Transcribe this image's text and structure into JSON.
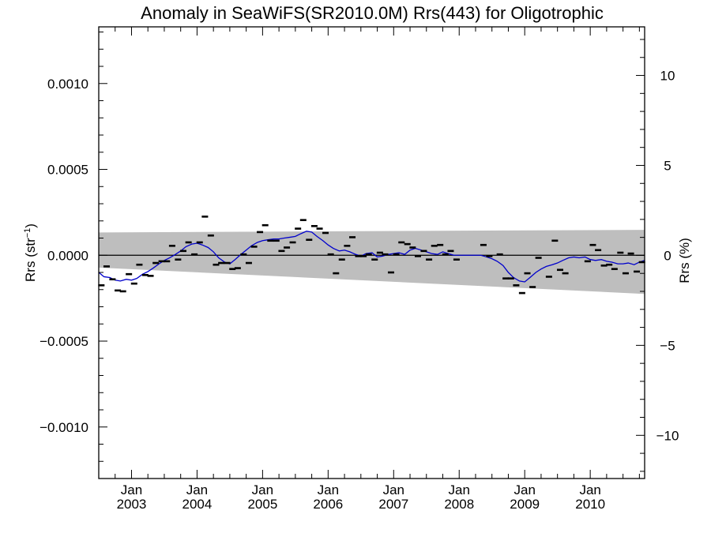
{
  "chart_data": {
    "type": "scatter",
    "title": "Anomaly in SeaWiFS(SR2010.0M) Rrs(443) for Oligotrophic",
    "ylabel_left_main": "Rrs (str",
    "ylabel_left_sup": "−1",
    "ylabel_left_close": ")",
    "ylabel_right": "Rrs (%)",
    "xlim": [
      2002.5,
      2010.83
    ],
    "ylim": [
      -0.0013,
      0.00133
    ],
    "y2lim": [
      -12.4,
      12.7
    ],
    "x_ticks": [
      {
        "value": 2003.0,
        "month": "Jan",
        "year": "2003"
      },
      {
        "value": 2004.0,
        "month": "Jan",
        "year": "2004"
      },
      {
        "value": 2005.0,
        "month": "Jan",
        "year": "2005"
      },
      {
        "value": 2006.0,
        "month": "Jan",
        "year": "2006"
      },
      {
        "value": 2007.0,
        "month": "Jan",
        "year": "2007"
      },
      {
        "value": 2008.0,
        "month": "Jan",
        "year": "2008"
      },
      {
        "value": 2009.0,
        "month": "Jan",
        "year": "2009"
      },
      {
        "value": 2010.0,
        "month": "Jan",
        "year": "2010"
      }
    ],
    "y_ticks_left": [
      {
        "value": 0.001,
        "label": "0.0010"
      },
      {
        "value": 0.0005,
        "label": "0.0005"
      },
      {
        "value": 0.0,
        "label": "0.0000"
      },
      {
        "value": -0.0005,
        "label": "−0.0005"
      },
      {
        "value": -0.001,
        "label": "−0.0010"
      }
    ],
    "y_ticks_right": [
      {
        "value": 10,
        "label": "10"
      },
      {
        "value": 5,
        "label": "5"
      },
      {
        "value": 0,
        "label": "0"
      },
      {
        "value": -5,
        "label": "−5"
      },
      {
        "value": -10,
        "label": "−10"
      }
    ],
    "zero_line": 0.0,
    "uncertainty_band": {
      "x": [
        2002.5,
        2010.83
      ],
      "upper": [
        0.000133,
        0.000148
      ],
      "lower": [
        -7.2e-05,
        -0.000225
      ]
    },
    "monthly_points": [
      [
        2002.54,
        -0.000175
      ],
      [
        2002.62,
        -6.5e-05
      ],
      [
        2002.71,
        -0.00014
      ],
      [
        2002.79,
        -0.000205
      ],
      [
        2002.87,
        -0.00021
      ],
      [
        2002.96,
        -0.00011
      ],
      [
        2003.04,
        -0.000165
      ],
      [
        2003.12,
        -5.5e-05
      ],
      [
        2003.21,
        -0.000115
      ],
      [
        2003.29,
        -0.00012
      ],
      [
        2003.37,
        -4.5e-05
      ],
      [
        2003.46,
        -3.5e-05
      ],
      [
        2003.54,
        -3.5e-05
      ],
      [
        2003.62,
        5.5e-05
      ],
      [
        2003.71,
        -2.5e-05
      ],
      [
        2003.79,
        2.5e-05
      ],
      [
        2003.87,
        7.5e-05
      ],
      [
        2003.96,
        5e-06
      ],
      [
        2004.04,
        7.5e-05
      ],
      [
        2004.12,
        0.000225
      ],
      [
        2004.21,
        0.000115
      ],
      [
        2004.29,
        -5.5e-05
      ],
      [
        2004.37,
        -4.5e-05
      ],
      [
        2004.46,
        -4.5e-05
      ],
      [
        2004.54,
        -8e-05
      ],
      [
        2004.62,
        -7.5e-05
      ],
      [
        2004.71,
        5e-06
      ],
      [
        2004.79,
        -4.5e-05
      ],
      [
        2004.87,
        5e-05
      ],
      [
        2004.96,
        0.000135
      ],
      [
        2005.04,
        0.000175
      ],
      [
        2005.12,
        8.5e-05
      ],
      [
        2005.21,
        8.5e-05
      ],
      [
        2005.29,
        2.5e-05
      ],
      [
        2005.37,
        4.5e-05
      ],
      [
        2005.46,
        7.5e-05
      ],
      [
        2005.54,
        0.000155
      ],
      [
        2005.62,
        0.000205
      ],
      [
        2005.71,
        9e-05
      ],
      [
        2005.79,
        0.00017
      ],
      [
        2005.87,
        0.000155
      ],
      [
        2005.96,
        0.00013
      ],
      [
        2006.04,
        5e-06
      ],
      [
        2006.12,
        -0.000105
      ],
      [
        2006.21,
        -2.5e-05
      ],
      [
        2006.29,
        5.5e-05
      ],
      [
        2006.37,
        0.000105
      ],
      [
        2006.46,
        -5e-06
      ],
      [
        2006.54,
        -5e-06
      ],
      [
        2006.62,
        5e-06
      ],
      [
        2006.71,
        -2.5e-05
      ],
      [
        2006.79,
        1.5e-05
      ],
      [
        2006.87,
        5e-06
      ],
      [
        2006.96,
        -0.0001
      ],
      [
        2007.04,
        5e-06
      ],
      [
        2007.12,
        7.5e-05
      ],
      [
        2007.21,
        6.5e-05
      ],
      [
        2007.29,
        4.5e-05
      ],
      [
        2007.37,
        -5e-06
      ],
      [
        2007.46,
        2.5e-05
      ],
      [
        2007.54,
        -2.5e-05
      ],
      [
        2007.62,
        5.5e-05
      ],
      [
        2007.71,
        6e-05
      ],
      [
        2007.79,
        5e-06
      ],
      [
        2007.87,
        2.5e-05
      ],
      [
        2007.96,
        -2.5e-05
      ],
      [
        2008.37,
        6e-05
      ],
      [
        2008.46,
        -5e-06
      ],
      [
        2008.62,
        5e-06
      ],
      [
        2008.71,
        -0.000135
      ],
      [
        2008.79,
        -0.000135
      ],
      [
        2008.87,
        -0.000175
      ],
      [
        2008.96,
        -0.00022
      ],
      [
        2009.04,
        -0.000105
      ],
      [
        2009.12,
        -0.000185
      ],
      [
        2009.21,
        -1.5e-05
      ],
      [
        2009.37,
        -0.000125
      ],
      [
        2009.46,
        8.5e-05
      ],
      [
        2009.54,
        -8.5e-05
      ],
      [
        2009.62,
        -0.000105
      ],
      [
        2009.96,
        -3.5e-05
      ],
      [
        2010.04,
        6e-05
      ],
      [
        2010.12,
        3e-05
      ],
      [
        2010.21,
        -6e-05
      ],
      [
        2010.29,
        -5.5e-05
      ],
      [
        2010.37,
        -8e-05
      ],
      [
        2010.46,
        1.5e-05
      ],
      [
        2010.54,
        -0.000105
      ],
      [
        2010.62,
        1e-05
      ],
      [
        2010.71,
        -9.5e-05
      ],
      [
        2010.79,
        -4e-05
      ]
    ],
    "running_mean": {
      "color": "#0000cc",
      "points": [
        [
          2002.5,
          -0.0001
        ],
        [
          2002.58,
          -0.000125
        ],
        [
          2002.67,
          -0.00013
        ],
        [
          2002.75,
          -0.000145
        ],
        [
          2002.83,
          -0.00015
        ],
        [
          2002.92,
          -0.00014
        ],
        [
          2003.0,
          -0.000145
        ],
        [
          2003.08,
          -0.000135
        ],
        [
          2003.17,
          -0.00011
        ],
        [
          2003.25,
          -9.5e-05
        ],
        [
          2003.33,
          -7.5e-05
        ],
        [
          2003.42,
          -5e-05
        ],
        [
          2003.5,
          -3e-05
        ],
        [
          2003.58,
          -1.5e-05
        ],
        [
          2003.67,
          5e-06
        ],
        [
          2003.75,
          2.5e-05
        ],
        [
          2003.83,
          5e-05
        ],
        [
          2003.92,
          6.5e-05
        ],
        [
          2004.0,
          7e-05
        ],
        [
          2004.08,
          6e-05
        ],
        [
          2004.17,
          4.5e-05
        ],
        [
          2004.25,
          2e-05
        ],
        [
          2004.33,
          -1.5e-05
        ],
        [
          2004.42,
          -4e-05
        ],
        [
          2004.5,
          -5e-05
        ],
        [
          2004.58,
          -2.5e-05
        ],
        [
          2004.67,
          5e-06
        ],
        [
          2004.75,
          3e-05
        ],
        [
          2004.83,
          5.5e-05
        ],
        [
          2004.92,
          7.5e-05
        ],
        [
          2005.0,
          8.5e-05
        ],
        [
          2005.08,
          9e-05
        ],
        [
          2005.17,
          9.5e-05
        ],
        [
          2005.25,
          9.5e-05
        ],
        [
          2005.33,
          0.0001
        ],
        [
          2005.42,
          0.000105
        ],
        [
          2005.5,
          0.00011
        ],
        [
          2005.58,
          0.000125
        ],
        [
          2005.67,
          0.00014
        ],
        [
          2005.75,
          0.000135
        ],
        [
          2005.83,
          0.00011
        ],
        [
          2005.92,
          8.5e-05
        ],
        [
          2006.0,
          6e-05
        ],
        [
          2006.08,
          4e-05
        ],
        [
          2006.17,
          2.5e-05
        ],
        [
          2006.25,
          3e-05
        ],
        [
          2006.33,
          2e-05
        ],
        [
          2006.42,
          5e-06
        ],
        [
          2006.5,
          -5e-06
        ],
        [
          2006.58,
          1e-05
        ],
        [
          2006.67,
          1.5e-05
        ],
        [
          2006.75,
          -1e-05
        ],
        [
          2006.83,
          -5e-06
        ],
        [
          2006.92,
          5e-06
        ],
        [
          2007.0,
          1e-05
        ],
        [
          2007.08,
          1.5e-05
        ],
        [
          2007.17,
          5e-06
        ],
        [
          2007.25,
          3e-05
        ],
        [
          2007.33,
          4e-05
        ],
        [
          2007.42,
          3e-05
        ],
        [
          2007.5,
          2e-05
        ],
        [
          2007.58,
          1e-05
        ],
        [
          2007.67,
          5e-06
        ],
        [
          2007.75,
          2e-05
        ],
        [
          2007.83,
          1e-05
        ],
        [
          2007.92,
          0.0
        ],
        [
          2008.0,
          0.0
        ],
        [
          2008.17,
          0.0
        ],
        [
          2008.33,
          0.0
        ],
        [
          2008.42,
          -1e-05
        ],
        [
          2008.5,
          -2e-05
        ],
        [
          2008.58,
          -3.5e-05
        ],
        [
          2008.67,
          -6e-05
        ],
        [
          2008.75,
          -0.0001
        ],
        [
          2008.83,
          -0.00013
        ],
        [
          2008.92,
          -0.00015
        ],
        [
          2009.0,
          -0.000155
        ],
        [
          2009.08,
          -0.00013
        ],
        [
          2009.17,
          -0.0001
        ],
        [
          2009.25,
          -8e-05
        ],
        [
          2009.33,
          -6.5e-05
        ],
        [
          2009.42,
          -5.5e-05
        ],
        [
          2009.5,
          -4.5e-05
        ],
        [
          2009.58,
          -3e-05
        ],
        [
          2009.67,
          -1.5e-05
        ],
        [
          2009.75,
          -1e-05
        ],
        [
          2009.83,
          -1.5e-05
        ],
        [
          2009.92,
          -1e-05
        ],
        [
          2010.0,
          -2.5e-05
        ],
        [
          2010.08,
          -3e-05
        ],
        [
          2010.17,
          -2.5e-05
        ],
        [
          2010.25,
          -3.5e-05
        ],
        [
          2010.33,
          -4e-05
        ],
        [
          2010.42,
          -5e-05
        ],
        [
          2010.5,
          -5e-05
        ],
        [
          2010.58,
          -4.5e-05
        ],
        [
          2010.67,
          -5.5e-05
        ],
        [
          2010.75,
          -4e-05
        ],
        [
          2010.83,
          -3e-05
        ]
      ]
    },
    "colors": {
      "band": "#bebebe",
      "points": "#000000",
      "zero_line": "#000000"
    }
  }
}
